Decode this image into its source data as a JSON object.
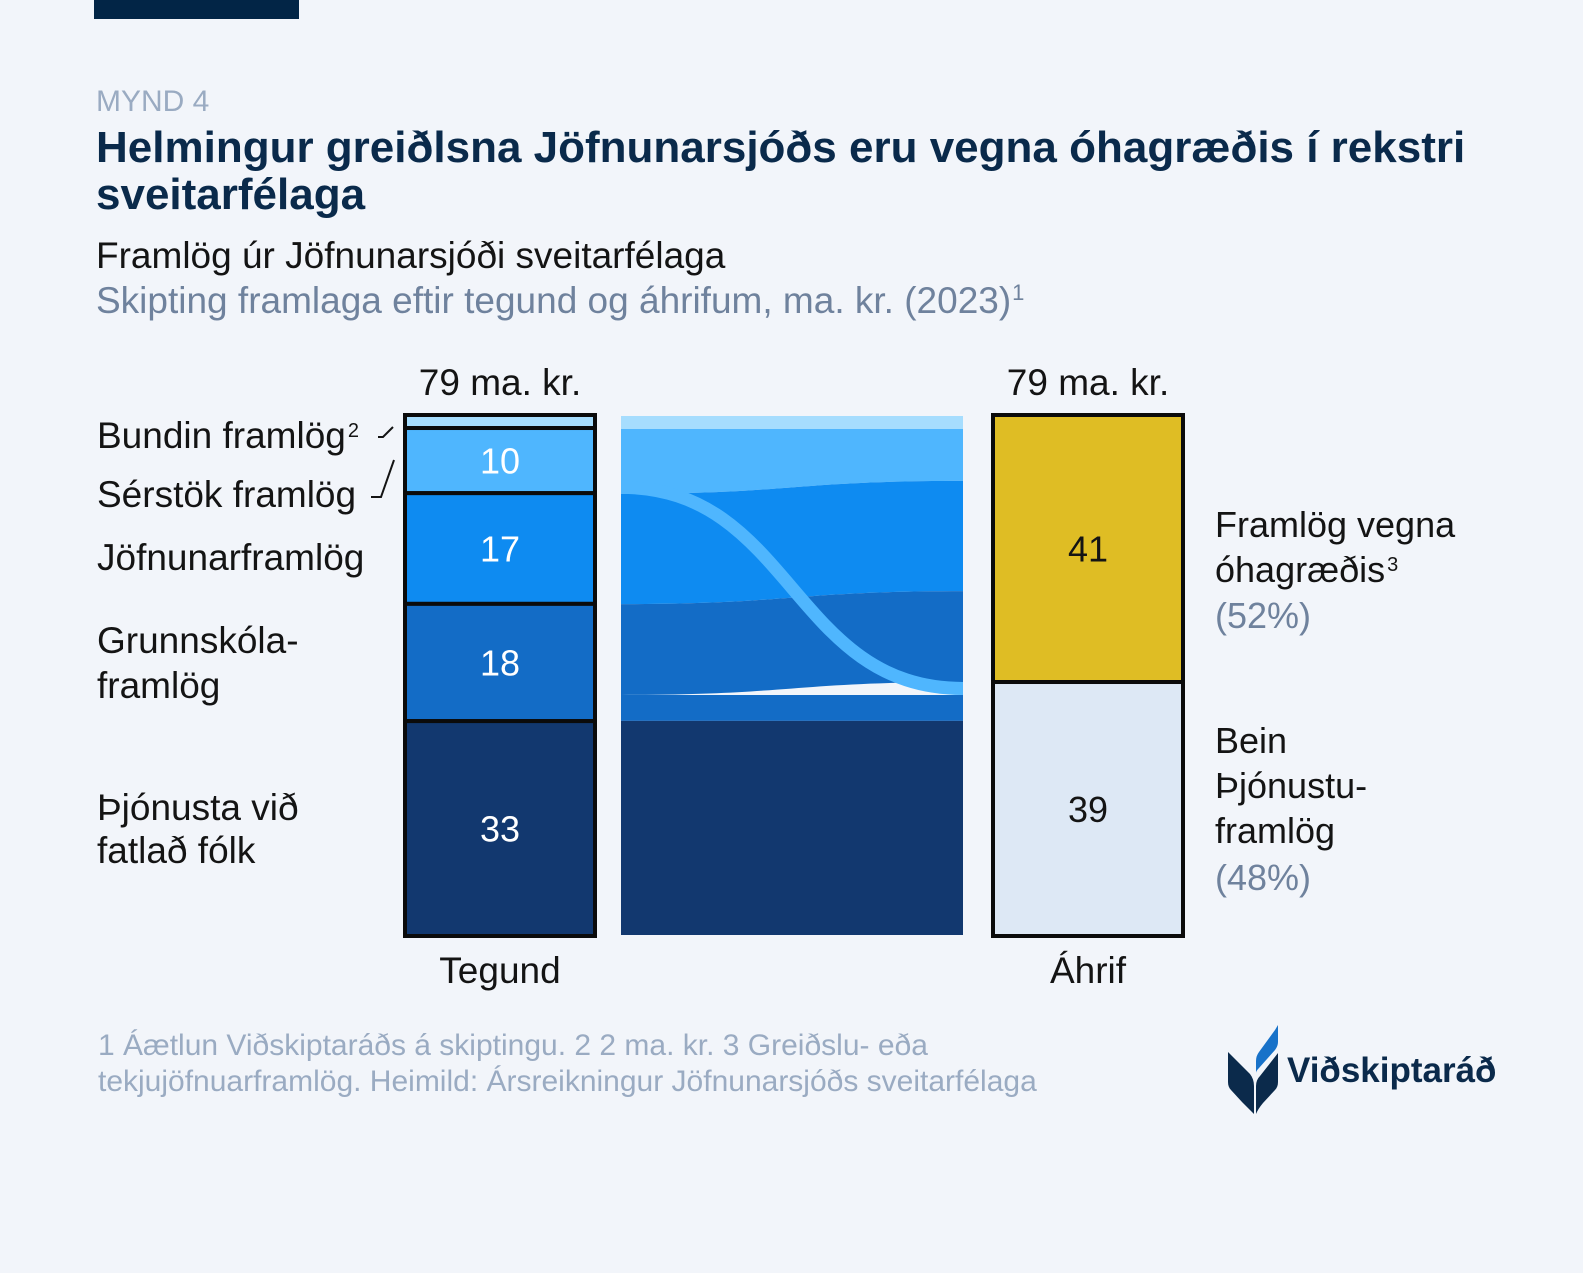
{
  "header": {
    "figure_label": "MYND 4",
    "headline": "Helmingur greiðlsna Jöfnunarsjóðs eru vegna óhagræðis í rekstri sveitarfélaga"
  },
  "chart_data": {
    "type": "bar",
    "subtype": "stacked bars linked by flows (sankey)",
    "title": "Framlög úr Jöfnunarsjóði sveitarfélaga",
    "subtitle": "Skipting framlaga eftir tegund og áhrifum, ma. kr. (2023)",
    "subtitle_sup": "1",
    "unit": "ma. kr.",
    "xlabel": "",
    "ylabel": "",
    "grid": false,
    "columns": [
      {
        "name": "Tegund",
        "total": 79,
        "total_label": "79 ma. kr.",
        "segments": [
          {
            "id": "bundin",
            "label_lines": [
              "Bundin framlög"
            ],
            "sup": "2",
            "value": 2,
            "show_value": false,
            "color": "#a6ddfe"
          },
          {
            "id": "serstok",
            "label_lines": [
              "Sérstök framlög"
            ],
            "value": 10,
            "show_value": true,
            "color": "#4fb6fe"
          },
          {
            "id": "jofnunar",
            "label_lines": [
              "Jöfnunarframlög"
            ],
            "value": 17,
            "show_value": true,
            "color": "#0e8bf1"
          },
          {
            "id": "grunnskola",
            "label_lines": [
              "Grunnskóla-",
              "framlög"
            ],
            "value": 18,
            "show_value": true,
            "color": "#136cc6"
          },
          {
            "id": "thjonusta",
            "label_lines": [
              "Þjónusta við",
              "fatlað fólk"
            ],
            "value": 33,
            "show_value": true,
            "color": "#12386f"
          }
        ]
      },
      {
        "name": "Áhrif",
        "total": 79,
        "total_label": "79 ma. kr.",
        "segments": [
          {
            "id": "ohagraedi",
            "label_lines": [
              "Framlög vegna",
              "óhagræðis"
            ],
            "sup": "3",
            "pct": "(52%)",
            "value": 41,
            "show_value": true,
            "color": "#dfbd24"
          },
          {
            "id": "bein",
            "label_lines": [
              "Bein",
              "Þjónustu-",
              "framlög"
            ],
            "pct": "(48%)",
            "value": 39,
            "show_value": true,
            "color": "#dde8f5"
          }
        ]
      }
    ],
    "flows": [
      {
        "source": "bundin",
        "target": "ohagraedi",
        "value": 2
      },
      {
        "source": "serstok",
        "target": "ohagraedi",
        "value": 8
      },
      {
        "source": "serstok",
        "target": "bein",
        "value": 2
      },
      {
        "source": "jofnunar",
        "target": "ohagraedi",
        "value": 17
      },
      {
        "source": "grunnskola",
        "target": "ohagraedi",
        "value": 14
      },
      {
        "source": "grunnskola",
        "target": "bein",
        "value": 4
      },
      {
        "source": "thjonusta",
        "target": "bein",
        "value": 33
      }
    ],
    "border_color": "#0b0b0b"
  },
  "footnote": {
    "lines": [
      "1 Áætlun Viðskiptaráðs á skiptingu. 2 2 ma. kr. 3 Greiðslu- eða",
      "tekjujöfnuarframlög. Heimild: Ársreikningur Jöfnunarsjóðs sveitarfélaga"
    ]
  },
  "logo": {
    "text": "Viðskiptaráð",
    "icon": "leaf-logo-icon",
    "colors": {
      "dark": "#0b2a4b",
      "accent": "#1872c9"
    }
  }
}
